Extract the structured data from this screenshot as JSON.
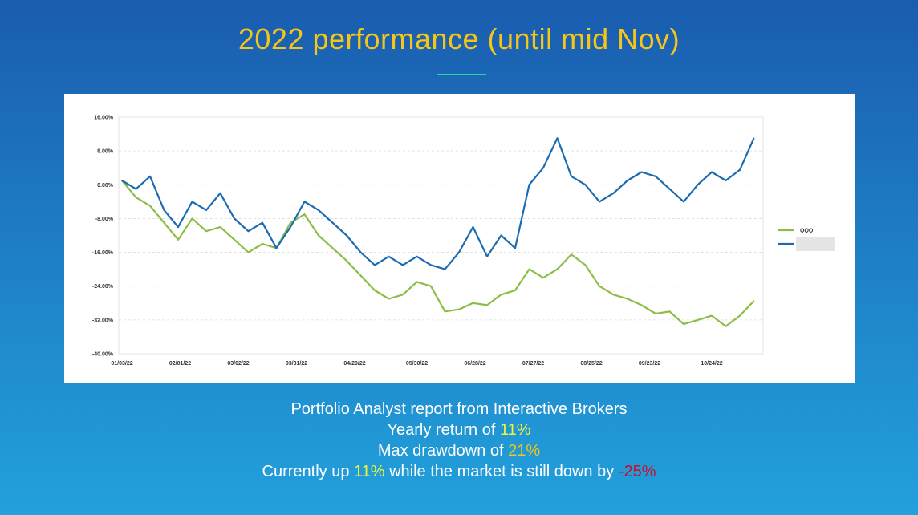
{
  "slide": {
    "title": "2022 performance (until mid Nov)",
    "title_color": "#f5c518",
    "rule_color": "#2ed1a0"
  },
  "caption": {
    "line1": "Portfolio Analyst report from Interactive Brokers",
    "line2_prefix": "Yearly return of ",
    "line2_value": "11%",
    "line3_prefix": "Max drawdown of ",
    "line3_value": "21%",
    "line4_prefix": "Currently up ",
    "line4_value": "11%",
    "line4_middle": " while the market is still down by ",
    "line4_market": "-25%",
    "highlight_yellow": "#f2f23a",
    "highlight_orange": "#f5c518",
    "highlight_red": "#c8102e"
  },
  "chart_data": {
    "type": "line",
    "title": "",
    "xlabel": "",
    "ylabel": "",
    "ylim": [
      -40,
      16
    ],
    "yticks": [
      16,
      8,
      0,
      -8,
      -16,
      -24,
      -32,
      -40
    ],
    "ytick_labels": [
      "16.00%",
      "8.00%",
      "0.00%",
      "-8.00%",
      "-16.00%",
      "-24.00%",
      "-32.00%",
      "-40.00%"
    ],
    "x_tick_labels": [
      "01/03/22",
      "02/01/22",
      "03/02/22",
      "03/31/22",
      "04/29/22",
      "05/30/22",
      "06/28/22",
      "07/27/22",
      "08/25/22",
      "09/23/22",
      "10/24/22"
    ],
    "x_tick_days": [
      0,
      29,
      58,
      87,
      116,
      147,
      176,
      205,
      234,
      263,
      294
    ],
    "grid": true,
    "legend_position": "right",
    "series": [
      {
        "name": "QQQ",
        "color": "#8cbd45",
        "dates": [
          "01/03/22",
          "01/10/22",
          "01/17/22",
          "01/24/22",
          "01/31/22",
          "02/07/22",
          "02/14/22",
          "02/21/22",
          "02/28/22",
          "03/07/22",
          "03/14/22",
          "03/21/22",
          "03/28/22",
          "04/04/22",
          "04/11/22",
          "04/18/22",
          "04/25/22",
          "05/02/22",
          "05/09/22",
          "05/16/22",
          "05/23/22",
          "05/30/22",
          "06/06/22",
          "06/13/22",
          "06/20/22",
          "06/27/22",
          "07/04/22",
          "07/11/22",
          "07/18/22",
          "07/25/22",
          "08/01/22",
          "08/08/22",
          "08/15/22",
          "08/22/22",
          "08/29/22",
          "09/05/22",
          "09/12/22",
          "09/19/22",
          "09/26/22",
          "10/03/22",
          "10/10/22",
          "10/17/22",
          "10/24/22",
          "10/31/22",
          "11/07/22",
          "11/14/22"
        ],
        "values": [
          1.0,
          -3.0,
          -5.0,
          -9.0,
          -13.0,
          -8.0,
          -11.0,
          -10.0,
          -13.0,
          -16.0,
          -14.0,
          -15.0,
          -9.0,
          -7.0,
          -12.0,
          -15.0,
          -18.0,
          -21.5,
          -25.0,
          -27.0,
          -26.0,
          -23.0,
          -24.0,
          -30.0,
          -29.5,
          -28.0,
          -28.5,
          -26.0,
          -25.0,
          -20.0,
          -22.0,
          -20.0,
          -16.5,
          -19.0,
          -24.0,
          -26.0,
          -27.0,
          -28.5,
          -30.5,
          -30.0,
          -33.0,
          -32.0,
          -31.0,
          -33.5,
          -31.0,
          -27.5
        ]
      },
      {
        "name": "",
        "color": "#1c6bb0",
        "dates": [
          "01/03/22",
          "01/10/22",
          "01/17/22",
          "01/24/22",
          "01/31/22",
          "02/07/22",
          "02/14/22",
          "02/21/22",
          "02/28/22",
          "03/07/22",
          "03/14/22",
          "03/21/22",
          "03/28/22",
          "04/04/22",
          "04/11/22",
          "04/18/22",
          "04/25/22",
          "05/02/22",
          "05/09/22",
          "05/16/22",
          "05/23/22",
          "05/30/22",
          "06/06/22",
          "06/13/22",
          "06/20/22",
          "06/27/22",
          "07/04/22",
          "07/11/22",
          "07/18/22",
          "07/25/22",
          "08/01/22",
          "08/08/22",
          "08/15/22",
          "08/22/22",
          "08/29/22",
          "09/05/22",
          "09/12/22",
          "09/19/22",
          "09/26/22",
          "10/03/22",
          "10/10/22",
          "10/17/22",
          "10/24/22",
          "10/31/22",
          "11/07/22",
          "11/14/22"
        ],
        "values": [
          1.0,
          -1.0,
          2.0,
          -6.0,
          -10.0,
          -4.0,
          -6.0,
          -2.0,
          -8.0,
          -11.0,
          -9.0,
          -15.0,
          -10.0,
          -4.0,
          -6.0,
          -9.0,
          -12.0,
          -16.0,
          -19.0,
          -17.0,
          -19.0,
          -17.0,
          -19.0,
          -20.0,
          -16.0,
          -10.0,
          -17.0,
          -12.0,
          -15.0,
          0.0,
          4.0,
          11.0,
          2.0,
          0.0,
          -4.0,
          -2.0,
          1.0,
          3.0,
          2.0,
          -1.0,
          -4.0,
          0.0,
          3.0,
          1.0,
          3.5,
          11.0
        ]
      }
    ]
  }
}
